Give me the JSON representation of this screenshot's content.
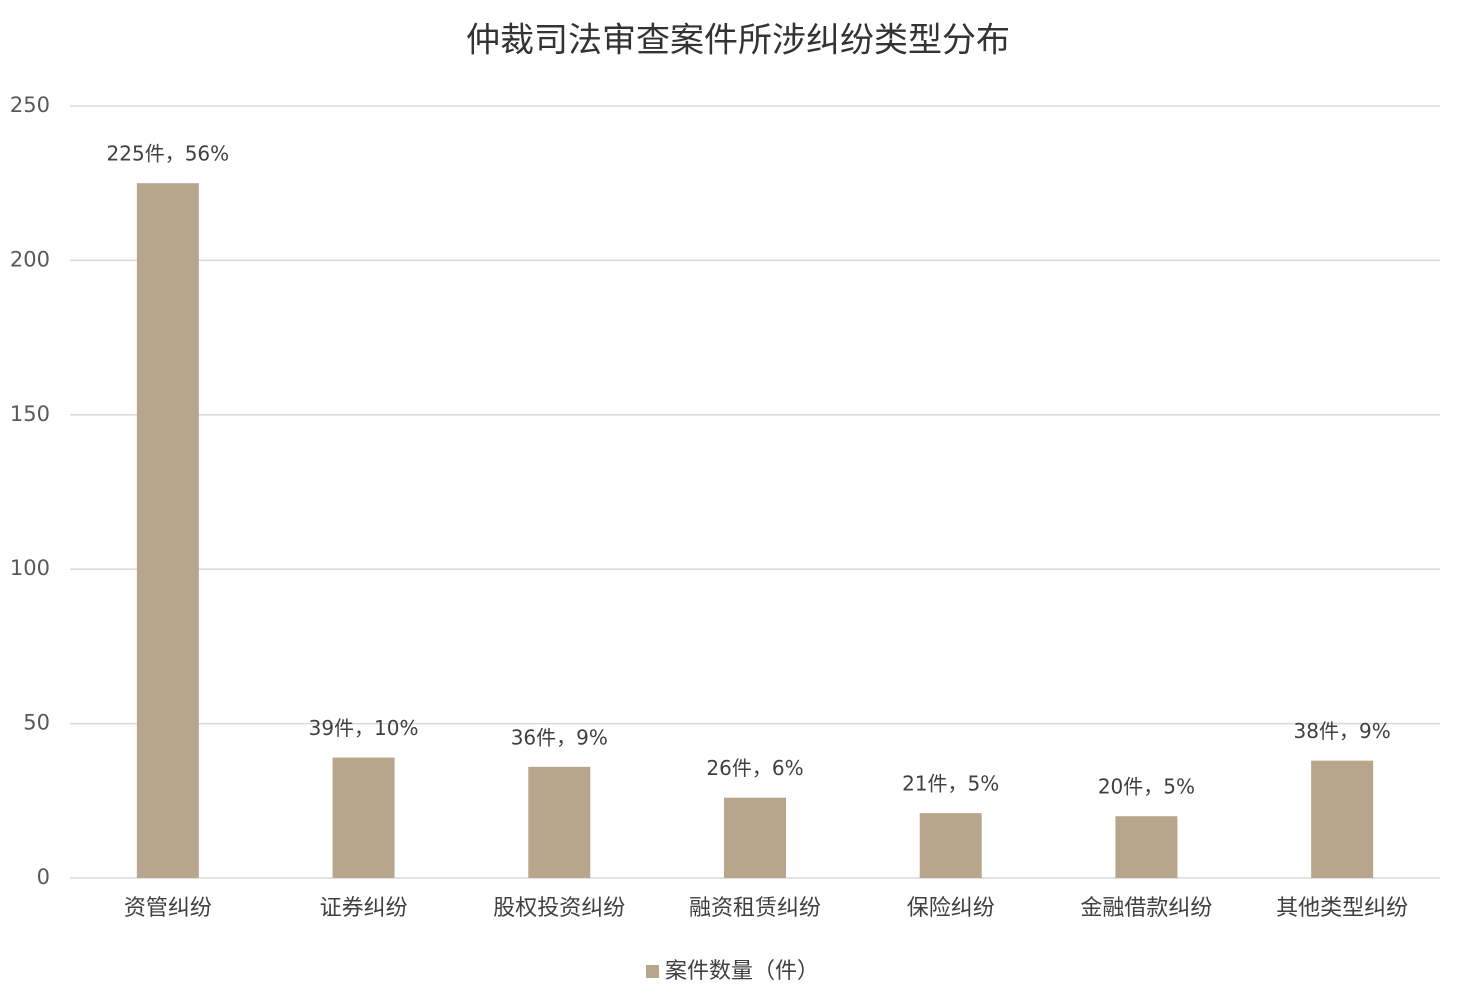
{
  "chart_data": {
    "type": "bar",
    "title": "仲裁司法审查案件所涉纠纷类型分布",
    "categories": [
      "资管纠纷",
      "证券纠纷",
      "股权投资纠纷",
      "融资租赁纠纷",
      "保险纠纷",
      "金融借款纠纷",
      "其他类型纠纷"
    ],
    "series": [
      {
        "name": "案件数量（件）",
        "color": "#b8a68c",
        "values": [
          225,
          39,
          36,
          26,
          21,
          20,
          38
        ],
        "value_labels": [
          "225件，56%",
          "39件，10%",
          "36件，9%",
          "26件，6%",
          "21件，5%",
          "20件，5%",
          "38件，9%"
        ]
      }
    ],
    "ylim": [
      0,
      250
    ],
    "yticks": [
      0,
      50,
      100,
      150,
      200,
      250
    ],
    "grid": true,
    "legend": "bottom"
  }
}
